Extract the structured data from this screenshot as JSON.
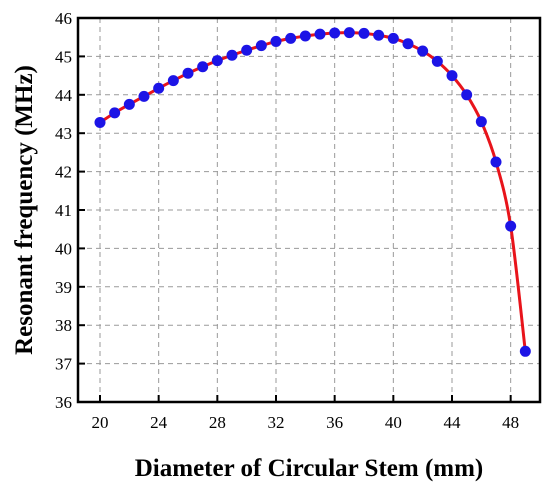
{
  "chart_data": {
    "type": "line",
    "title": "",
    "xlabel": "Diameter of Circular Stem (mm)",
    "ylabel": "Resonant frequency (MHz)",
    "xlim": [
      18.5,
      50
    ],
    "ylim": [
      36,
      46
    ],
    "xticks": [
      20,
      24,
      28,
      32,
      36,
      40,
      44,
      48
    ],
    "yticks": [
      36,
      37,
      38,
      39,
      40,
      41,
      42,
      43,
      44,
      45,
      46
    ],
    "grid": true,
    "line_color": "#e8141b",
    "marker_color": "#1c14e6",
    "series": [
      {
        "x": [
          20,
          21,
          22,
          23,
          24,
          25,
          26,
          27,
          28,
          29,
          30,
          31,
          32,
          33,
          34,
          35,
          36,
          37,
          38,
          39,
          40,
          41,
          42,
          43,
          44,
          45,
          46,
          47,
          48,
          49
        ],
        "values": [
          43.28,
          43.53,
          43.75,
          43.96,
          44.17,
          44.37,
          44.56,
          44.73,
          44.89,
          45.03,
          45.16,
          45.28,
          45.39,
          45.47,
          45.53,
          45.58,
          45.61,
          45.62,
          45.6,
          45.55,
          45.47,
          45.33,
          45.14,
          44.87,
          44.5,
          44.0,
          43.3,
          42.25,
          40.58,
          37.32
        ]
      }
    ]
  }
}
